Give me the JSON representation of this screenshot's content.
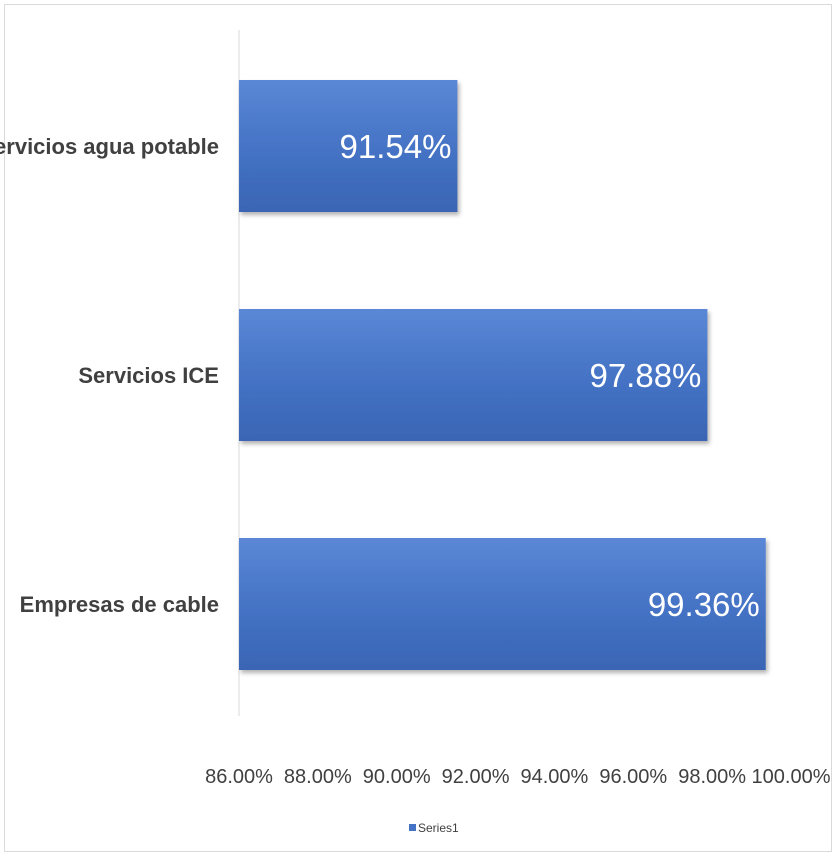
{
  "chart_data": {
    "type": "bar",
    "orientation": "horizontal",
    "categories": [
      "Servicios agua potable",
      "Servicios ICE",
      "Empresas de cable"
    ],
    "series": [
      {
        "name": "Series1",
        "values": [
          91.54,
          97.88,
          99.36
        ],
        "color": "#4472c4"
      }
    ],
    "data_labels": [
      "91.54%",
      "97.88%",
      "99.36%"
    ],
    "x_ticks": [
      "86.00%",
      "88.00%",
      "90.00%",
      "92.00%",
      "94.00%",
      "96.00%",
      "98.00%",
      "100.00%"
    ],
    "xlim": [
      86,
      100
    ],
    "xlabel": "",
    "ylabel": "",
    "title": "",
    "grid": false,
    "legend_position": "bottom"
  }
}
